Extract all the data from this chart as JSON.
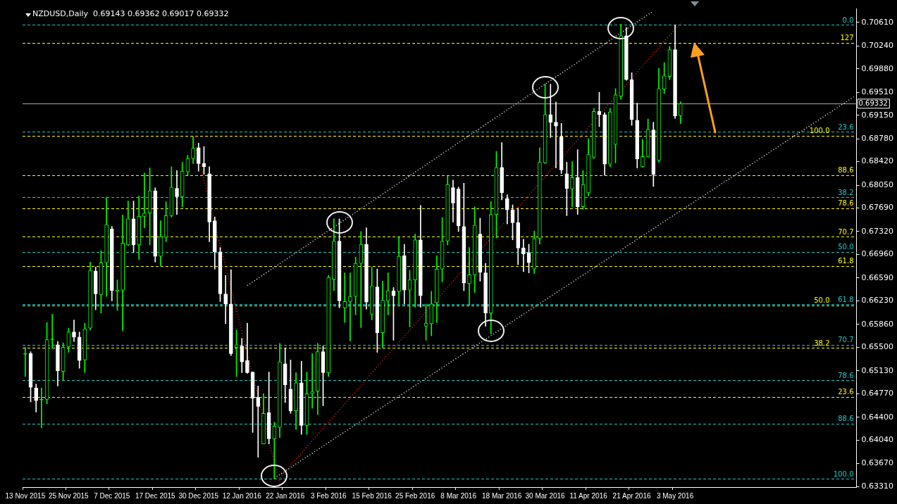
{
  "chart_data": {
    "type": "candlestick",
    "title": "NZDUSD,Daily  0.69143 0.69362 0.69017 0.69332",
    "categories": [
      "13 Nov 2015",
      null,
      null,
      null,
      null,
      null,
      null,
      null,
      "25 Nov 2015",
      null,
      null,
      null,
      null,
      null,
      null,
      null,
      "7 Dec 2015",
      null,
      null,
      null,
      null,
      null,
      null,
      null,
      "17 Dec 2015",
      null,
      null,
      null,
      null,
      null,
      null,
      null,
      "30 Dec 2015",
      null,
      null,
      null,
      null,
      null,
      null,
      null,
      "12 Jan 2016",
      null,
      null,
      null,
      null,
      null,
      null,
      null,
      "22 Jan 2016",
      null,
      null,
      null,
      null,
      null,
      null,
      null,
      "3 Feb 2016",
      null,
      null,
      null,
      null,
      null,
      null,
      null,
      "15 Feb 2016",
      null,
      null,
      null,
      null,
      null,
      null,
      null,
      "25 Feb 2016",
      null,
      null,
      null,
      null,
      null,
      null,
      null,
      "8 Mar 2016",
      null,
      null,
      null,
      null,
      null,
      null,
      null,
      "18 Mar 2016",
      null,
      null,
      null,
      null,
      null,
      null,
      null,
      "30 Mar 2016",
      null,
      null,
      null,
      null,
      null,
      null,
      null,
      "11 Apr 2016",
      null,
      null,
      null,
      null,
      null,
      null,
      null,
      "21 Apr 2016",
      null,
      null,
      null,
      null,
      null,
      null,
      null,
      "3 May 2016",
      null,
      null,
      null,
      null,
      null,
      null,
      null,
      null,
      null,
      null,
      null,
      null,
      null,
      null,
      null,
      null,
      null,
      null,
      null,
      null,
      null,
      null,
      null,
      null,
      null,
      null,
      null,
      null,
      null,
      null,
      null,
      null,
      null
    ],
    "ohlc": [
      [
        0.6539,
        0.655,
        0.6504,
        0.6539
      ],
      [
        0.654,
        0.6543,
        0.6464,
        0.6487
      ],
      [
        0.6486,
        0.6492,
        0.6448,
        0.6466
      ],
      [
        0.6467,
        0.6486,
        0.6423,
        0.6467
      ],
      [
        0.6468,
        0.6589,
        0.6461,
        0.6562
      ],
      [
        0.6562,
        0.6602,
        0.6548,
        0.6562
      ],
      [
        0.6554,
        0.6559,
        0.6489,
        0.6513
      ],
      [
        0.6512,
        0.6557,
        0.6498,
        0.655
      ],
      [
        0.6551,
        0.658,
        0.6542,
        0.6574
      ],
      [
        0.6574,
        0.6593,
        0.6559,
        0.6566
      ],
      [
        0.6566,
        0.6574,
        0.6517,
        0.6529
      ],
      [
        0.653,
        0.6588,
        0.651,
        0.6579
      ],
      [
        0.658,
        0.6684,
        0.6577,
        0.6671
      ],
      [
        0.667,
        0.6676,
        0.6609,
        0.6634
      ],
      [
        0.6633,
        0.6702,
        0.6604,
        0.6683
      ],
      [
        0.6683,
        0.6786,
        0.663,
        0.6743
      ],
      [
        0.6736,
        0.674,
        0.6623,
        0.6639
      ],
      [
        0.6638,
        0.6656,
        0.6608,
        0.664
      ],
      [
        0.664,
        0.6758,
        0.6576,
        0.6714
      ],
      [
        0.6711,
        0.678,
        0.671,
        0.6752
      ],
      [
        0.6752,
        0.678,
        0.6699,
        0.6711
      ],
      [
        0.6711,
        0.6788,
        0.6688,
        0.6756
      ],
      [
        0.6756,
        0.6824,
        0.6738,
        0.6761
      ],
      [
        0.6761,
        0.6832,
        0.6711,
        0.6796
      ],
      [
        0.6796,
        0.6801,
        0.6684,
        0.6693
      ],
      [
        0.6693,
        0.6749,
        0.6678,
        0.6724
      ],
      [
        0.6723,
        0.6779,
        0.6716,
        0.6757
      ],
      [
        0.6757,
        0.6834,
        0.6755,
        0.6802
      ],
      [
        0.68,
        0.6828,
        0.6759,
        0.6787
      ],
      [
        0.6787,
        0.6841,
        0.6771,
        0.6827
      ],
      [
        0.6826,
        0.6852,
        0.6821,
        0.6847
      ],
      [
        0.6847,
        0.6881,
        0.6839,
        0.6863
      ],
      [
        0.6864,
        0.6871,
        0.6827,
        0.6839
      ],
      [
        0.6839,
        0.6866,
        0.6822,
        0.6834
      ],
      [
        0.6823,
        0.6834,
        0.6716,
        0.6747
      ],
      [
        0.6749,
        0.6755,
        0.6673,
        0.67
      ],
      [
        0.67,
        0.6707,
        0.6622,
        0.6634
      ],
      [
        0.6634,
        0.6663,
        0.6587,
        0.6618
      ],
      [
        0.6618,
        0.6672,
        0.6537,
        0.654
      ],
      [
        0.655,
        0.6577,
        0.6504,
        0.6554
      ],
      [
        0.6552,
        0.6564,
        0.651,
        0.6527
      ],
      [
        0.6529,
        0.6588,
        0.6509,
        0.651
      ],
      [
        0.6511,
        0.6511,
        0.6416,
        0.647
      ],
      [
        0.6471,
        0.6489,
        0.6377,
        0.6457
      ],
      [
        0.6398,
        0.6477,
        0.6398,
        0.6446
      ],
      [
        0.6447,
        0.6511,
        0.6398,
        0.6406
      ],
      [
        0.6406,
        0.6432,
        0.6343,
        0.6426
      ],
      [
        0.6424,
        0.6556,
        0.6408,
        0.6527
      ],
      [
        0.6524,
        0.6549,
        0.6463,
        0.6491
      ],
      [
        0.6484,
        0.653,
        0.6446,
        0.645
      ],
      [
        0.645,
        0.651,
        0.6421,
        0.6494
      ],
      [
        0.6494,
        0.6528,
        0.6413,
        0.6427
      ],
      [
        0.6427,
        0.6511,
        0.6413,
        0.6477
      ],
      [
        0.6477,
        0.654,
        0.6454,
        0.648
      ],
      [
        0.6481,
        0.6556,
        0.6444,
        0.6543
      ],
      [
        0.6543,
        0.6552,
        0.6458,
        0.651
      ],
      [
        0.651,
        0.6663,
        0.6504,
        0.666
      ],
      [
        0.6657,
        0.6752,
        0.6639,
        0.6717
      ],
      [
        0.6717,
        0.6752,
        0.6612,
        0.6623
      ],
      [
        0.6612,
        0.6667,
        0.6589,
        0.6622
      ],
      [
        0.6622,
        0.6667,
        0.656,
        0.663
      ],
      [
        0.663,
        0.6692,
        0.6601,
        0.6682
      ],
      [
        0.6682,
        0.6732,
        0.6581,
        0.6712
      ],
      [
        0.6712,
        0.6738,
        0.661,
        0.6621
      ],
      [
        0.6602,
        0.6676,
        0.6593,
        0.6647
      ],
      [
        0.6645,
        0.6673,
        0.6542,
        0.6573
      ],
      [
        0.6573,
        0.6654,
        0.6549,
        0.6624
      ],
      [
        0.6623,
        0.6667,
        0.6601,
        0.6639
      ],
      [
        0.6639,
        0.6644,
        0.6561,
        0.6631
      ],
      [
        0.6638,
        0.6723,
        0.6618,
        0.6693
      ],
      [
        0.6694,
        0.6712,
        0.6618,
        0.664
      ],
      [
        0.664,
        0.6671,
        0.6582,
        0.6656
      ],
      [
        0.6656,
        0.6728,
        0.6613,
        0.6719
      ],
      [
        0.6719,
        0.6773,
        0.6613,
        0.6631
      ],
      [
        0.6583,
        0.6618,
        0.6561,
        0.6588
      ],
      [
        0.6587,
        0.6638,
        0.6568,
        0.6618
      ],
      [
        0.662,
        0.6694,
        0.6589,
        0.6673
      ],
      [
        0.6673,
        0.6754,
        0.6653,
        0.6717
      ],
      [
        0.6717,
        0.6819,
        0.6711,
        0.6806
      ],
      [
        0.6801,
        0.6813,
        0.6747,
        0.6777
      ],
      [
        0.6799,
        0.6802,
        0.6732,
        0.6741
      ],
      [
        0.674,
        0.6808,
        0.6639,
        0.6651
      ],
      [
        0.665,
        0.6707,
        0.6616,
        0.6664
      ],
      [
        0.6664,
        0.6771,
        0.6636,
        0.6742
      ],
      [
        0.6728,
        0.6753,
        0.6654,
        0.6668
      ],
      [
        0.6667,
        0.6682,
        0.6583,
        0.6604
      ],
      [
        0.6604,
        0.6779,
        0.6571,
        0.6759
      ],
      [
        0.6759,
        0.6858,
        0.6722,
        0.6833
      ],
      [
        0.6833,
        0.6872,
        0.6782,
        0.6793
      ],
      [
        0.6784,
        0.679,
        0.6744,
        0.6766
      ],
      [
        0.6766,
        0.6774,
        0.6719,
        0.6746
      ],
      [
        0.6746,
        0.6769,
        0.668,
        0.6706
      ],
      [
        0.6706,
        0.672,
        0.6669,
        0.6697
      ],
      [
        0.6699,
        0.6712,
        0.6667,
        0.6683
      ],
      [
        0.6673,
        0.6733,
        0.6666,
        0.6721
      ],
      [
        0.6721,
        0.6864,
        0.6712,
        0.6841
      ],
      [
        0.684,
        0.6964,
        0.6839,
        0.6916
      ],
      [
        0.6916,
        0.6964,
        0.688,
        0.6904
      ],
      [
        0.6904,
        0.6936,
        0.6832,
        0.6898
      ],
      [
        0.6881,
        0.6902,
        0.6823,
        0.6829
      ],
      [
        0.6823,
        0.6841,
        0.6757,
        0.68
      ],
      [
        0.6799,
        0.6842,
        0.6771,
        0.6817
      ],
      [
        0.6817,
        0.6861,
        0.6759,
        0.6771
      ],
      [
        0.6771,
        0.6828,
        0.6767,
        0.6806
      ],
      [
        0.6793,
        0.6878,
        0.6788,
        0.6853
      ],
      [
        0.6849,
        0.6926,
        0.6847,
        0.6921
      ],
      [
        0.6921,
        0.6951,
        0.6897,
        0.6916
      ],
      [
        0.6916,
        0.6919,
        0.6821,
        0.6838
      ],
      [
        0.6838,
        0.6926,
        0.6834,
        0.692
      ],
      [
        0.6869,
        0.6957,
        0.684,
        0.6947
      ],
      [
        0.6945,
        0.7058,
        0.694,
        0.704
      ],
      [
        0.704,
        0.7053,
        0.697,
        0.6971
      ],
      [
        0.6971,
        0.6982,
        0.6899,
        0.6908
      ],
      [
        0.6907,
        0.6934,
        0.6832,
        0.6846
      ],
      [
        0.6834,
        0.6877,
        0.6833,
        0.685
      ],
      [
        0.685,
        0.6909,
        0.6849,
        0.6893
      ],
      [
        0.6892,
        0.6904,
        0.6803,
        0.6822
      ],
      [
        0.6844,
        0.6989,
        0.6841,
        0.6957
      ],
      [
        0.6956,
        0.6998,
        0.6949,
        0.6977
      ],
      [
        0.6976,
        0.7023,
        0.6971,
        0.7018
      ],
      [
        0.7018,
        0.7057,
        0.691,
        0.6914
      ],
      [
        0.69143,
        0.69362,
        0.69017,
        0.69332
      ],
      null,
      null,
      null,
      null,
      null,
      null,
      null,
      null,
      null,
      null,
      null,
      null,
      null,
      null,
      null,
      null,
      null,
      null,
      null,
      null,
      null,
      null,
      null,
      null,
      null,
      null,
      null,
      null,
      null,
      null,
      null,
      null
    ],
    "colors": [
      "#00ff00",
      "#ffffff",
      "#ffffff",
      "#00ff00",
      "#00ff00",
      "#00ff00",
      "#ffffff",
      "#00ff00",
      "#00ff00",
      "#ffffff",
      "#ffffff",
      "#00ff00",
      "#00ff00",
      "#ffffff",
      "#00ff00",
      "#00ff00",
      "#ffffff",
      "#00ff00",
      "#00ff00",
      "#00ff00",
      "#ffffff",
      "#00ff00",
      "#00ff00",
      "#00ff00",
      "#ffffff",
      "#00ff00",
      "#00ff00",
      "#00ff00",
      "#ffffff",
      "#00ff00",
      "#00ff00",
      "#00ff00",
      "#ffffff",
      "#ffffff",
      "#ffffff",
      "#ffffff",
      "#ffffff",
      "#ffffff",
      "#ffffff",
      "#00ff00",
      "#ffffff",
      "#ffffff",
      "#ffffff",
      "#ffffff",
      "#00ff00",
      "#ffffff",
      "#00ff00",
      "#00ff00",
      "#ffffff",
      "#ffffff",
      "#00ff00",
      "#ffffff",
      "#00ff00",
      "#00ff00",
      "#00ff00",
      "#ffffff",
      "#00ff00",
      "#00ff00",
      "#ffffff",
      "#00ff00",
      "#00ff00",
      "#00ff00",
      "#00ff00",
      "#ffffff",
      "#00ff00",
      "#ffffff",
      "#00ff00",
      "#00ff00",
      "#ffffff",
      "#00ff00",
      "#ffffff",
      "#00ff00",
      "#00ff00",
      "#ffffff",
      "#00ff00",
      "#00ff00",
      "#00ff00",
      "#00ff00",
      "#00ff00",
      "#ffffff",
      "#ffffff",
      "#ffffff",
      "#00ff00",
      "#00ff00",
      "#ffffff",
      "#ffffff",
      "#00ff00",
      "#00ff00",
      "#ffffff",
      "#ffffff",
      "#ffffff",
      "#ffffff",
      "#ffffff",
      "#ffffff",
      "#00ff00",
      "#00ff00",
      "#00ff00",
      "#ffffff",
      "#ffffff",
      "#ffffff",
      "#ffffff",
      "#00ff00",
      "#ffffff",
      "#00ff00",
      "#00ff00",
      "#00ff00",
      "#ffffff",
      "#ffffff",
      "#00ff00",
      "#00ff00",
      "#00ff00",
      "#ffffff",
      "#ffffff",
      "#ffffff",
      "#00ff00",
      "#00ff00",
      "#ffffff",
      "#00ff00",
      "#00ff00",
      "#00ff00",
      "#ffffff",
      "#00ff00",
      null,
      null,
      null,
      null,
      null,
      null,
      null,
      null,
      null,
      null,
      null,
      null,
      null,
      null,
      null,
      null,
      null,
      null,
      null,
      null,
      null,
      null,
      null,
      null,
      null,
      null,
      null,
      null,
      null,
      null,
      null,
      null
    ],
    "ylim": [
      0.633,
      0.7083
    ],
    "yticks": [
      {
        "value": 0.7061,
        "label": "0.70610"
      },
      {
        "value": 0.7024,
        "label": "0.70240"
      },
      {
        "value": 0.6988,
        "label": "0.69880"
      },
      {
        "value": 0.6951,
        "label": "0.69510"
      },
      {
        "value": 0.6915,
        "label": "0.69150"
      },
      {
        "value": 0.6878,
        "label": "0.68780"
      },
      {
        "value": 0.6842,
        "label": "0.68420"
      },
      {
        "value": 0.6805,
        "label": "0.68050"
      },
      {
        "value": 0.6769,
        "label": "0.67690"
      },
      {
        "value": 0.6732,
        "label": "0.67320"
      },
      {
        "value": 0.6696,
        "label": "0.66960"
      },
      {
        "value": 0.6659,
        "label": "0.66590"
      },
      {
        "value": 0.6623,
        "label": "0.66230"
      },
      {
        "value": 0.6586,
        "label": "0.65860"
      },
      {
        "value": 0.655,
        "label": "0.65500"
      },
      {
        "value": 0.6513,
        "label": "0.65130"
      },
      {
        "value": 0.6477,
        "label": "0.64770"
      },
      {
        "value": 0.644,
        "label": "0.64400"
      },
      {
        "value": 0.6404,
        "label": "0.64040"
      },
      {
        "value": 0.6367,
        "label": "0.63670"
      },
      {
        "value": 0.6331,
        "label": "0.63310"
      }
    ],
    "series": [
      {
        "type": "line",
        "color": "#ff2020",
        "line_style": "dotted",
        "values": [
          null,
          null,
          null,
          null,
          null,
          null,
          null,
          null,
          null,
          null,
          null,
          null,
          null,
          null,
          null,
          null,
          null,
          null,
          null,
          null,
          null,
          null,
          null,
          null,
          null,
          null,
          null,
          null,
          null,
          null,
          null,
          0.6882,
          null,
          null,
          null,
          null,
          null,
          null,
          null,
          null,
          null,
          null,
          null,
          null,
          null,
          null,
          null,
          0.6335,
          null,
          null,
          null,
          null,
          null,
          null,
          null,
          null,
          null,
          null,
          null,
          null,
          null,
          null,
          null,
          null,
          null,
          null,
          null,
          null,
          null,
          null,
          null,
          null,
          null,
          null,
          null,
          null,
          null,
          null,
          null,
          null,
          null,
          null,
          null,
          null,
          null,
          null,
          null,
          null,
          null,
          null,
          null,
          null,
          null,
          null,
          null,
          null,
          null,
          null,
          null,
          null,
          null,
          null,
          null,
          null,
          null,
          null,
          null,
          null,
          null,
          null,
          null,
          null,
          null,
          null,
          null,
          null,
          null,
          null,
          null,
          null,
          null,
          null,
          null,
          null,
          null,
          null,
          null,
          null,
          null,
          null,
          null,
          null,
          null,
          null,
          null,
          null,
          null,
          null,
          null,
          null,
          null,
          null,
          null,
          null,
          null,
          null,
          null,
          null,
          null,
          null,
          null,
          null,
          null,
          null
        ]
      },
      {
        "type": "line",
        "color": "#ff2020",
        "line_style": "dotted",
        "values": [
          null,
          null,
          null,
          null,
          null,
          null,
          null,
          null,
          null,
          null,
          null,
          null,
          null,
          null,
          null,
          null,
          null,
          null,
          null,
          null,
          null,
          null,
          null,
          null,
          null,
          null,
          null,
          null,
          null,
          null,
          null,
          null,
          null,
          null,
          null,
          null,
          null,
          null,
          null,
          null,
          null,
          null,
          null,
          null,
          null,
          null,
          null,
          0.6345,
          null,
          null,
          null,
          null,
          null,
          null,
          null,
          null,
          null,
          null,
          null,
          null,
          null,
          null,
          null,
          null,
          null,
          null,
          null,
          null,
          null,
          null,
          null,
          null,
          null,
          null,
          null,
          null,
          null,
          null,
          null,
          null,
          null,
          null,
          null,
          null,
          null,
          null,
          null,
          null,
          null,
          null,
          null,
          null,
          null,
          null,
          null,
          null,
          null,
          null,
          null,
          null,
          null,
          null,
          null,
          null,
          null,
          null,
          null,
          null,
          null,
          null,
          null,
          null,
          null,
          null,
          null,
          null,
          null,
          null,
          null,
          null,
          null,
          0.706,
          null,
          null,
          null,
          null,
          null,
          null,
          null,
          null,
          null,
          null,
          null,
          null,
          null,
          null,
          null,
          null,
          null,
          null,
          null,
          null,
          null,
          null,
          null,
          null,
          null,
          null,
          null,
          null,
          null,
          null,
          null,
          null
        ]
      },
      {
        "type": "line",
        "color": "#ffffff",
        "line_style": "dotted",
        "values": [
          null,
          null,
          null,
          null,
          null,
          null,
          null,
          null,
          null,
          null,
          null,
          null,
          null,
          null,
          null,
          null,
          null,
          null,
          null,
          null,
          null,
          null,
          null,
          null,
          null,
          null,
          null,
          null,
          null,
          null,
          null,
          null,
          null,
          null,
          null,
          null,
          null,
          null,
          null,
          null,
          null,
          0.6647,
          null,
          null,
          null,
          null,
          null,
          null,
          null,
          null,
          null,
          null,
          null,
          null,
          null,
          null,
          null,
          null,
          null,
          null,
          null,
          null,
          null,
          null,
          null,
          null,
          null,
          null,
          null,
          null,
          null,
          null,
          null,
          null,
          null,
          null,
          null,
          null,
          null,
          null,
          null,
          null,
          null,
          null,
          null,
          null,
          null,
          null,
          null,
          null,
          null,
          null,
          null,
          null,
          null,
          null,
          null,
          null,
          null,
          null,
          null,
          null,
          null,
          null,
          null,
          null,
          null,
          null,
          null,
          null,
          null,
          null,
          null,
          null,
          null,
          null,
          0.7079,
          null,
          null,
          null,
          null,
          null,
          null,
          null,
          null,
          null,
          null,
          null,
          null,
          null,
          null,
          null,
          null,
          null,
          null,
          null,
          null,
          null,
          null,
          null,
          null,
          null,
          null,
          null,
          null,
          null,
          null,
          null,
          null,
          null,
          null,
          null,
          null,
          null
        ]
      },
      {
        "type": "line",
        "color": "#ffffff",
        "line_style": "dotted",
        "values": [
          null,
          null,
          null,
          null,
          null,
          null,
          null,
          null,
          null,
          null,
          null,
          null,
          null,
          null,
          null,
          null,
          null,
          null,
          null,
          null,
          null,
          null,
          null,
          null,
          null,
          null,
          null,
          null,
          null,
          null,
          null,
          null,
          null,
          null,
          null,
          null,
          null,
          null,
          null,
          null,
          null,
          null,
          null,
          null,
          null,
          null,
          0.6344,
          null,
          null,
          null,
          null,
          null,
          null,
          null,
          null,
          null,
          null,
          null,
          null,
          null,
          null,
          null,
          null,
          null,
          null,
          null,
          null,
          null,
          null,
          null,
          null,
          null,
          null,
          null,
          null,
          null,
          null,
          null,
          null,
          null,
          null,
          null,
          null,
          null,
          null,
          null,
          null,
          null,
          null,
          null,
          null,
          null,
          null,
          null,
          null,
          null,
          null,
          null,
          null,
          null,
          null,
          null,
          null,
          null,
          null,
          null,
          null,
          null,
          null,
          null,
          null,
          null,
          null,
          null,
          null,
          null,
          null,
          null,
          null,
          null,
          null,
          null,
          null,
          null,
          null,
          null,
          null,
          null,
          null,
          null,
          null,
          null,
          null,
          null,
          null,
          null,
          null,
          null,
          null,
          null,
          null,
          null,
          null,
          null,
          null,
          null,
          null,
          null,
          null,
          null,
          null,
          null,
          null,
          0.6944
        ]
      }
    ],
    "ref_lines": [
      {
        "axis": "y",
        "value": 0.7057,
        "color": "#20c8c8",
        "line_style": "dashed"
      },
      {
        "axis": "y",
        "value": 0.7029,
        "color": "#ffff00",
        "line_style": "dashed"
      },
      {
        "axis": "y",
        "value": 0.69332,
        "label": "0.69332",
        "color": "#a0a8b0",
        "line_style": "solid"
      },
      {
        "axis": "y",
        "value": 0.6889,
        "color": "#20c8c8",
        "line_style": "dashed"
      },
      {
        "axis": "y",
        "value": 0.6883,
        "color": "#ffff00",
        "line_style": "dashed"
      },
      {
        "axis": "y",
        "value": 0.6821,
        "color": "#ffff00",
        "line_style": "dashed"
      },
      {
        "axis": "y",
        "value": 0.6786,
        "color": "#20c8c8",
        "line_style": "dashed"
      },
      {
        "axis": "y",
        "value": 0.6769,
        "color": "#ffff00",
        "line_style": "dashed"
      },
      {
        "axis": "y",
        "value": 0.6724,
        "color": "#ffff00",
        "line_style": "dashed"
      },
      {
        "axis": "y",
        "value": 0.67,
        "color": "#20c8c8",
        "line_style": "dashed"
      },
      {
        "axis": "y",
        "value": 0.6678,
        "color": "#ffff00",
        "line_style": "dashed"
      },
      {
        "axis": "y",
        "value": 0.6618,
        "color": "#20c8c8",
        "line_style": "dashed"
      },
      {
        "axis": "y",
        "value": 0.6616,
        "color": "#ffff00",
        "line_style": "dashed"
      },
      {
        "axis": "y",
        "value": 0.6554,
        "color": "#20c8c8",
        "line_style": "dashed"
      },
      {
        "axis": "y",
        "value": 0.6549,
        "color": "#ffff00",
        "line_style": "dashed"
      },
      {
        "axis": "y",
        "value": 0.6498,
        "color": "#20c8c8",
        "line_style": "dashed"
      },
      {
        "axis": "y",
        "value": 0.6472,
        "color": "#ffff00",
        "line_style": "dashed"
      },
      {
        "axis": "y",
        "value": 0.643,
        "color": "#20c8c8",
        "line_style": "dashed"
      },
      {
        "axis": "y",
        "value": 0.6343,
        "color": "#20c8c8",
        "line_style": "dashed"
      }
    ],
    "annotations": [
      {
        "text": "0.0",
        "y": 0.7057
      },
      {
        "text": "127",
        "y": 0.7029
      },
      {
        "text": "23.6",
        "y": 0.6889
      },
      {
        "text": "100.0",
        "y": 0.6883
      },
      {
        "text": "88.6",
        "y": 0.6821
      },
      {
        "text": "38.2",
        "y": 0.6786
      },
      {
        "text": "78.6",
        "y": 0.6769
      },
      {
        "text": "70.7",
        "y": 0.6724
      },
      {
        "text": "50.0",
        "y": 0.67
      },
      {
        "text": "61.8",
        "y": 0.6678
      },
      {
        "text": "61.8",
        "y": 0.6618
      },
      {
        "text": "50.0",
        "y": 0.6616
      },
      {
        "text": "70.7",
        "y": 0.6554
      },
      {
        "text": "38.2",
        "y": 0.6549
      },
      {
        "text": "78.6",
        "y": 0.6498
      },
      {
        "text": "23.6",
        "y": 0.6472
      },
      {
        "text": "88.6",
        "y": 0.643
      },
      {
        "text": "100.0",
        "y": 0.6343
      }
    ]
  }
}
